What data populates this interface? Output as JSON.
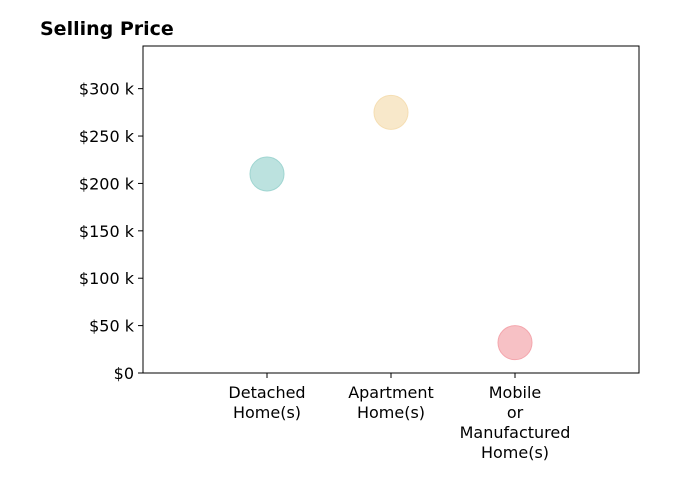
{
  "chart_data": {
    "type": "scatter",
    "title": "Selling Price",
    "xlabel": "",
    "ylabel": "",
    "categories": [
      [
        "Detached",
        "Home(s)"
      ],
      [
        "Apartment",
        "Home(s)"
      ],
      [
        "Mobile",
        "or",
        "Manufactured",
        "Home(s)"
      ]
    ],
    "values": [
      210000,
      275000,
      32000
    ],
    "colors": [
      "#9fd5d1",
      "#f5deb3",
      "#f4a6ad"
    ],
    "ylim": [
      0,
      345000
    ],
    "y_ticks": [
      {
        "value": 0,
        "label": "$0"
      },
      {
        "value": 50000,
        "label": "$50 k"
      },
      {
        "value": 100000,
        "label": "$100 k"
      },
      {
        "value": 150000,
        "label": "$150 k"
      },
      {
        "value": 200000,
        "label": "$200 k"
      },
      {
        "value": 250000,
        "label": "$250 k"
      },
      {
        "value": 300000,
        "label": "$300 k"
      }
    ],
    "grid": false,
    "legend": "none"
  }
}
